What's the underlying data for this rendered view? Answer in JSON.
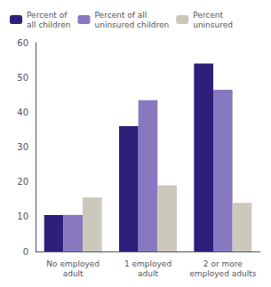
{
  "chart_data": {
    "type": "bar",
    "categories": [
      "No employed\nadult",
      "1 employed\nadult",
      "2 or more\nemployed adults"
    ],
    "series": [
      {
        "name": "Percent of\nall children",
        "color": "#2d1f7a",
        "values": [
          10.5,
          36,
          54
        ]
      },
      {
        "name": "Percent of all\nuninsured children",
        "color": "#8878c0",
        "values": [
          10.5,
          43.5,
          46.5
        ]
      },
      {
        "name": "Percent\nuninsured",
        "color": "#ccc8bc",
        "values": [
          15.5,
          19,
          14
        ]
      }
    ],
    "ylim": [
      0,
      60
    ],
    "yticks": [
      0,
      10,
      20,
      30,
      40,
      50,
      60
    ],
    "grid": false,
    "legend": "upper left"
  }
}
